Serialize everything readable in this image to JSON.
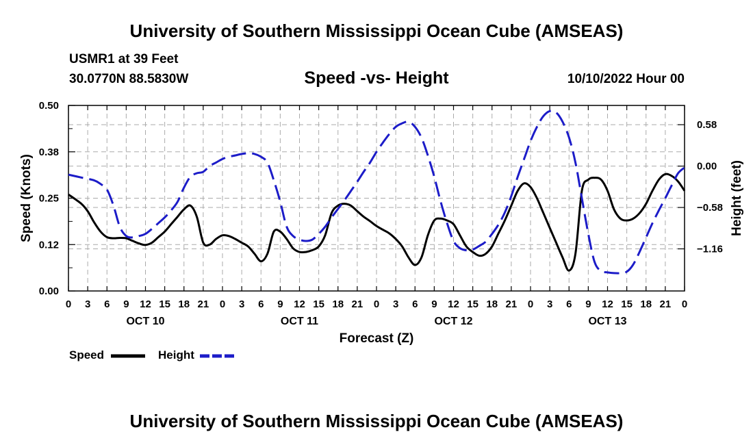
{
  "page": {
    "title": "University of Southern Mississippi Ocean Cube (AMSEAS)",
    "station": "USMR1 at 39 Feet",
    "coords": "30.0770N  88.5830W",
    "subtitle": "Speed -vs- Height",
    "datetime": "10/10/2022 Hour 00",
    "bottom_title": "University of Southern Mississippi Ocean Cube (AMSEAS)"
  },
  "legend": {
    "speed_label": "Speed",
    "height_label": "Height"
  },
  "colors": {
    "speed": "#000000",
    "height": "#1c1cc8",
    "grid": "#aaaaaa"
  },
  "chart_data": {
    "type": "line",
    "title": "Speed -vs- Height",
    "xlabel": "Forecast (Z)",
    "ylabel": "Speed (Knots)",
    "y2label": "Height (feet)",
    "xlim": [
      0,
      96
    ],
    "ylim": [
      0,
      0.5
    ],
    "y2lim": [
      -1.75,
      0.85
    ],
    "grid": true,
    "legend_position": "bottom-left",
    "x_ticks": [
      0,
      3,
      6,
      9,
      12,
      15,
      18,
      21,
      24,
      27,
      30,
      33,
      36,
      39,
      42,
      45,
      48,
      51,
      54,
      57,
      60,
      63,
      66,
      69,
      72,
      75,
      78,
      81,
      84,
      87,
      90,
      93,
      96
    ],
    "x_tick_labels": [
      "0",
      "3",
      "6",
      "9",
      "12",
      "15",
      "18",
      "21",
      "0",
      "3",
      "6",
      "9",
      "12",
      "15",
      "18",
      "21",
      "0",
      "3",
      "6",
      "9",
      "12",
      "15",
      "18",
      "21",
      "0",
      "3",
      "6",
      "9",
      "12",
      "15",
      "18",
      "21",
      "0"
    ],
    "day_labels": [
      {
        "x": 12,
        "label": "OCT 10"
      },
      {
        "x": 36,
        "label": "OCT 11"
      },
      {
        "x": 60,
        "label": "OCT 12"
      },
      {
        "x": 84,
        "label": "OCT 13"
      }
    ],
    "y_ticks": [
      0.0,
      0.125,
      0.25,
      0.375,
      0.5
    ],
    "y_tick_labels": [
      "0.00",
      "0.12",
      "0.25",
      "0.38",
      "0.50"
    ],
    "y2_ticks": [
      0.58,
      0.0,
      -0.58,
      -1.16
    ],
    "y2_tick_labels": [
      "0.58",
      "0.00",
      "−0.58",
      "−1.16"
    ],
    "series": [
      {
        "name": "Speed",
        "axis": "left",
        "style": "solid",
        "x": [
          0,
          2,
          3,
          4,
          5,
          6,
          7,
          8,
          9,
          10,
          11,
          12,
          13,
          14,
          15,
          16,
          17,
          18,
          19,
          20,
          21,
          22,
          23,
          24,
          25,
          26,
          27,
          28,
          29,
          30,
          31,
          32,
          33,
          34,
          35,
          36,
          37,
          38,
          39,
          40,
          41,
          42,
          43,
          44,
          45,
          46,
          47,
          48,
          49,
          50,
          51,
          52,
          53,
          54,
          55,
          56,
          57,
          58,
          59,
          60,
          61,
          62,
          63,
          64,
          65,
          66,
          67,
          68,
          69,
          70,
          71,
          72,
          73,
          74,
          75,
          76,
          77,
          78,
          79,
          80,
          81,
          82,
          83,
          84,
          85,
          86,
          87,
          88,
          89,
          90,
          91,
          92,
          93,
          94,
          95,
          96
        ],
        "values": [
          0.26,
          0.235,
          0.215,
          0.185,
          0.16,
          0.145,
          0.142,
          0.143,
          0.142,
          0.135,
          0.128,
          0.124,
          0.13,
          0.145,
          0.16,
          0.18,
          0.2,
          0.22,
          0.23,
          0.2,
          0.13,
          0.125,
          0.14,
          0.15,
          0.148,
          0.14,
          0.13,
          0.12,
          0.1,
          0.08,
          0.1,
          0.16,
          0.16,
          0.14,
          0.115,
          0.105,
          0.105,
          0.11,
          0.12,
          0.15,
          0.21,
          0.23,
          0.235,
          0.23,
          0.215,
          0.2,
          0.188,
          0.175,
          0.165,
          0.155,
          0.14,
          0.12,
          0.09,
          0.07,
          0.09,
          0.15,
          0.19,
          0.195,
          0.19,
          0.18,
          0.15,
          0.12,
          0.105,
          0.095,
          0.1,
          0.12,
          0.155,
          0.19,
          0.23,
          0.27,
          0.29,
          0.28,
          0.25,
          0.21,
          0.17,
          0.13,
          0.09,
          0.055,
          0.1,
          0.27,
          0.3,
          0.305,
          0.3,
          0.27,
          0.22,
          0.195,
          0.19,
          0.195,
          0.21,
          0.235,
          0.27,
          0.3,
          0.315,
          0.31,
          0.295,
          0.27
        ]
      },
      {
        "name": "Height",
        "axis": "right",
        "style": "dashed",
        "x": [
          0,
          2,
          4,
          5,
          6,
          7,
          8,
          9,
          10,
          11,
          12,
          13,
          14,
          15,
          16,
          17,
          18,
          19,
          20,
          21,
          22,
          23,
          24,
          25,
          26,
          27,
          28,
          29,
          30,
          31,
          32,
          33,
          34,
          35,
          36,
          37,
          38,
          39,
          40,
          41,
          42,
          43,
          44,
          45,
          46,
          47,
          48,
          49,
          50,
          51,
          52,
          53,
          54,
          55,
          56,
          57,
          58,
          59,
          60,
          61,
          62,
          63,
          64,
          65,
          66,
          67,
          68,
          69,
          70,
          71,
          72,
          73,
          74,
          75,
          76,
          77,
          78,
          79,
          80,
          81,
          82,
          83,
          84,
          85,
          86,
          87,
          88,
          89,
          90,
          91,
          92,
          93,
          94,
          95,
          96
        ],
        "values": [
          -0.12,
          -0.16,
          -0.2,
          -0.25,
          -0.33,
          -0.55,
          -0.85,
          -0.98,
          -1.0,
          -0.98,
          -0.95,
          -0.88,
          -0.8,
          -0.72,
          -0.62,
          -0.5,
          -0.3,
          -0.15,
          -0.1,
          -0.08,
          0.0,
          0.05,
          0.1,
          0.13,
          0.15,
          0.17,
          0.18,
          0.17,
          0.13,
          0.05,
          -0.2,
          -0.5,
          -0.85,
          -0.98,
          -1.03,
          -1.05,
          -1.03,
          -0.95,
          -0.85,
          -0.72,
          -0.6,
          -0.48,
          -0.35,
          -0.22,
          -0.08,
          0.05,
          0.2,
          0.33,
          0.45,
          0.55,
          0.6,
          0.62,
          0.55,
          0.4,
          0.15,
          -0.15,
          -0.5,
          -0.8,
          -1.05,
          -1.15,
          -1.18,
          -1.17,
          -1.12,
          -1.06,
          -0.95,
          -0.82,
          -0.65,
          -0.42,
          -0.15,
          0.1,
          0.35,
          0.55,
          0.7,
          0.77,
          0.75,
          0.62,
          0.4,
          0.05,
          -0.45,
          -0.95,
          -1.35,
          -1.47,
          -1.49,
          -1.5,
          -1.5,
          -1.48,
          -1.38,
          -1.2,
          -1.0,
          -0.8,
          -0.62,
          -0.45,
          -0.27,
          -0.1,
          -0.02
        ]
      }
    ]
  }
}
